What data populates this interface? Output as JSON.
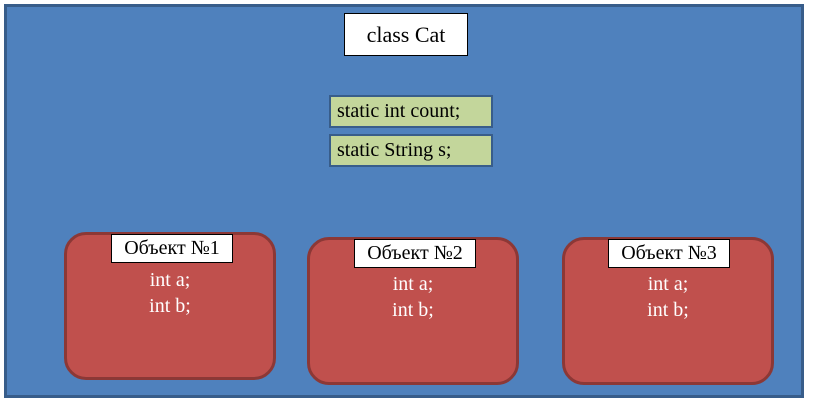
{
  "class_box": {
    "title": "class Cat",
    "static_fields": [
      "static int count;",
      "static String s;"
    ]
  },
  "objects": [
    {
      "label": "Объект №1",
      "fields": [
        "int a;",
        "int b;"
      ]
    },
    {
      "label": "Объект №2",
      "fields": [
        "int a;",
        "int b;"
      ]
    },
    {
      "label": "Объект №3",
      "fields": [
        "int a;",
        "int b;"
      ]
    }
  ],
  "colors": {
    "class_fill": "#4f81bd",
    "class_border": "#385d8a",
    "static_fill": "#c3d69b",
    "object_fill": "#c0504d",
    "object_border": "#8c3836"
  }
}
